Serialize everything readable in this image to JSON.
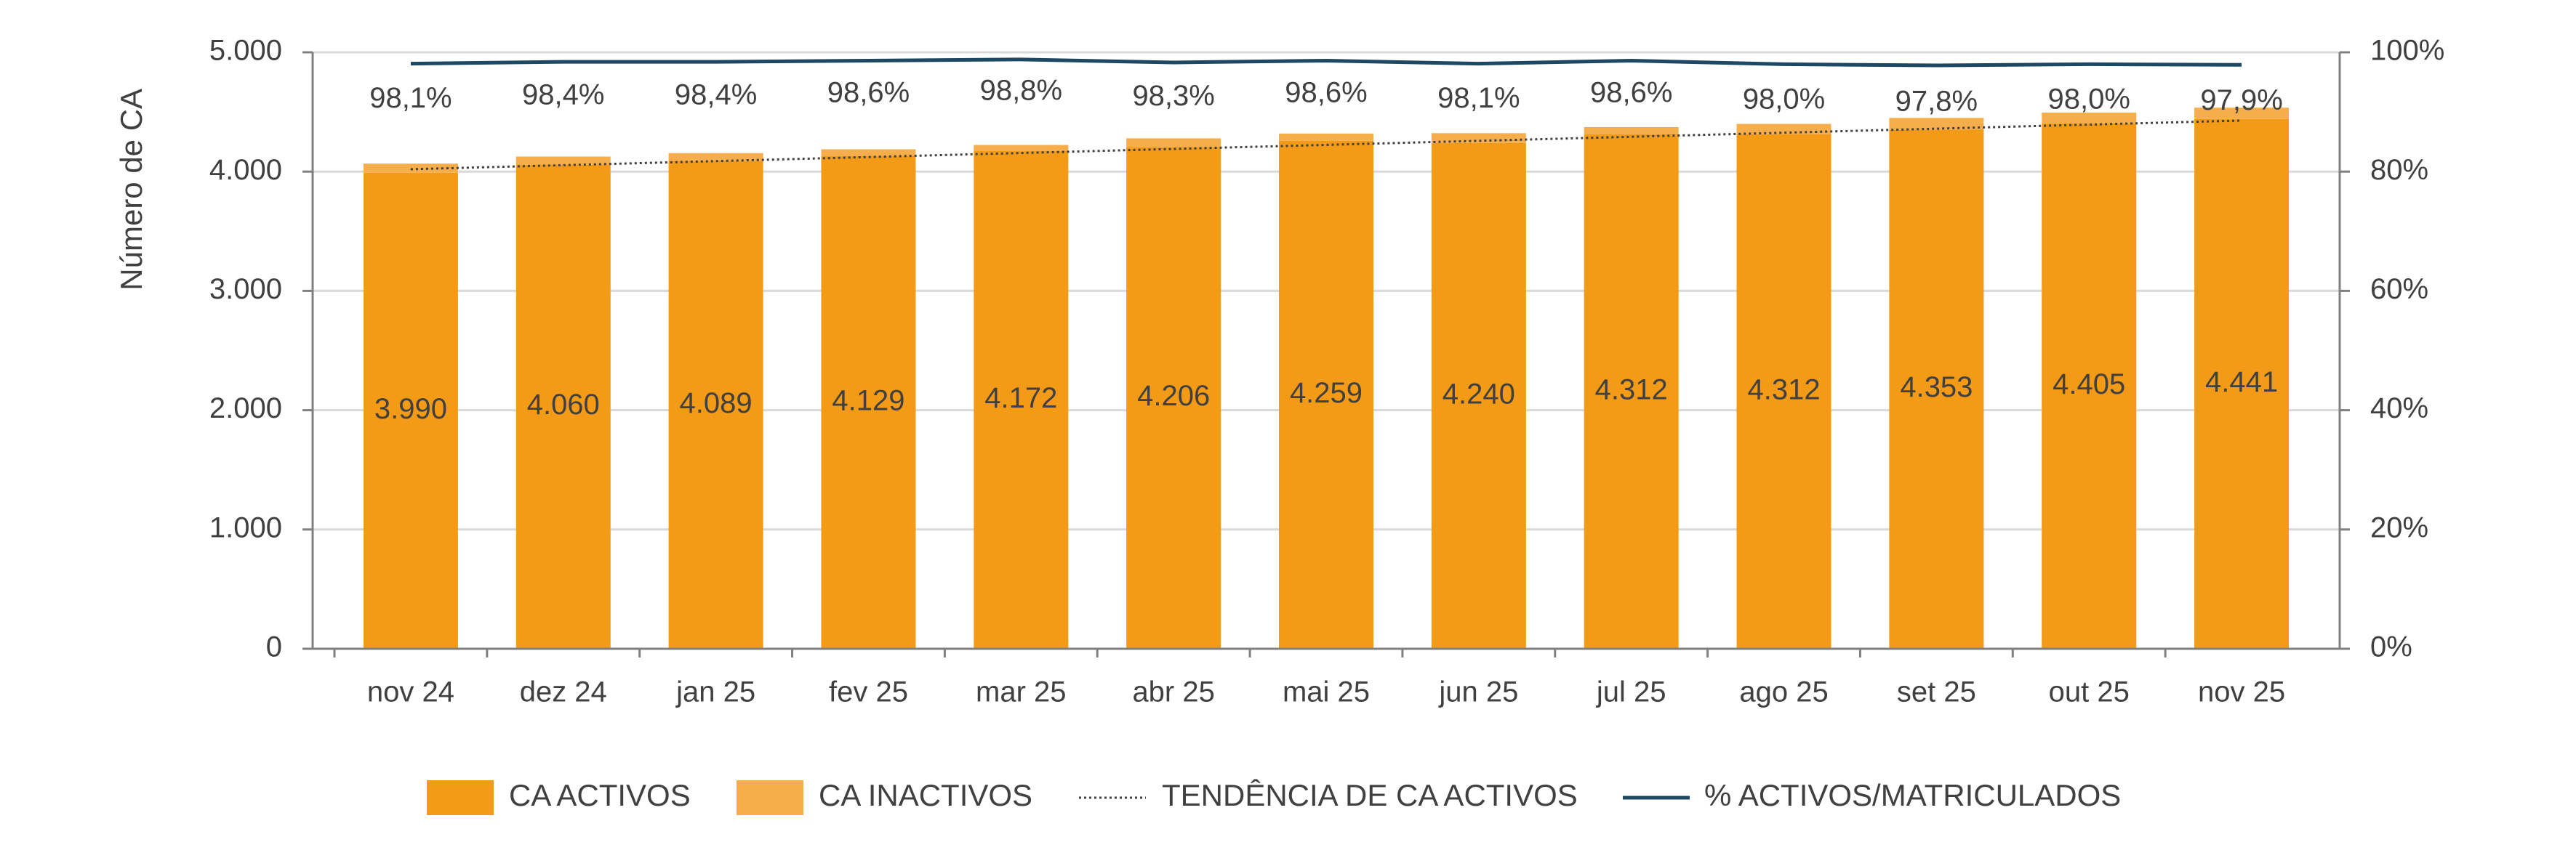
{
  "chart_data": {
    "type": "bar",
    "categories": [
      "nov 24",
      "dez 24",
      "jan 25",
      "fev 25",
      "mar 25",
      "abr 25",
      "mai 25",
      "jun 25",
      "jul 25",
      "ago 25",
      "set 25",
      "out 25",
      "nov 25"
    ],
    "series": [
      {
        "name": "CA ACTIVOS",
        "type": "bar",
        "axis": "left",
        "stacked": true,
        "values": [
          3990,
          4060,
          4089,
          4129,
          4172,
          4206,
          4259,
          4240,
          4312,
          4312,
          4353,
          4405,
          4441
        ],
        "labels": [
          "3.990",
          "4.060",
          "4.089",
          "4.129",
          "4.172",
          "4.206",
          "4.259",
          "4.240",
          "4.312",
          "4.312",
          "4.353",
          "4.405",
          "4.441"
        ]
      },
      {
        "name": "CA INACTIVOS",
        "type": "bar",
        "axis": "left",
        "stacked": true,
        "values": [
          77,
          66,
          66,
          58,
          51,
          73,
          60,
          82,
          61,
          88,
          97,
          90,
          95
        ]
      },
      {
        "name": "TENDÊNCIA DE CA ACTIVOS",
        "type": "trendline",
        "axis": "left",
        "style": "dotted",
        "values": [
          4020,
          4054,
          4088,
          4122,
          4156,
          4190,
          4224,
          4258,
          4292,
          4326,
          4360,
          4394,
          4428
        ]
      },
      {
        "name": "% ACTIVOS/MATRICULADOS",
        "type": "line",
        "axis": "right",
        "values": [
          98.1,
          98.4,
          98.4,
          98.6,
          98.8,
          98.3,
          98.6,
          98.1,
          98.6,
          98.0,
          97.8,
          98.0,
          97.9
        ],
        "labels": [
          "98,1%",
          "98,4%",
          "98,4%",
          "98,6%",
          "98,8%",
          "98,3%",
          "98,6%",
          "98,1%",
          "98,6%",
          "98,0%",
          "97,8%",
          "98,0%",
          "97,9%"
        ]
      }
    ],
    "ylabel": "Número de CA",
    "ylim": [
      0,
      5000
    ],
    "y_ticks": [
      "0",
      "1.000",
      "2.000",
      "3.000",
      "4.000",
      "5.000"
    ],
    "y2lim": [
      0,
      100
    ],
    "y2_ticks": [
      "0%",
      "20%",
      "40%",
      "60%",
      "80%",
      "100%"
    ],
    "grid": true,
    "legend_position": "bottom",
    "colors": {
      "active": "#F39A17",
      "inactive": "#F6AE4C",
      "trend": "#404040",
      "pct_line": "#1C4864",
      "grid": "#D9D9D9",
      "axis": "#808080",
      "text": "#404040"
    }
  }
}
